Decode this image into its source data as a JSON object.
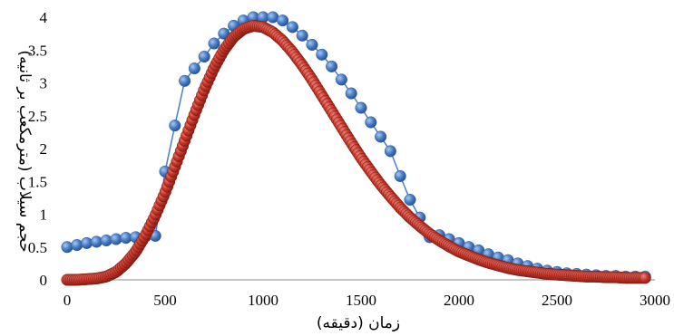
{
  "chart_data": {
    "type": "scatter",
    "title": "",
    "xlabel": "زمان (دقیقه)",
    "ylabel": "حجم سیلاب (مترمکعب بر ثانیه)",
    "xlim": [
      0,
      3000
    ],
    "ylim": [
      0,
      4
    ],
    "x_ticks": [
      "0",
      "500",
      "1000",
      "1500",
      "2000",
      "2500",
      "3000"
    ],
    "y_ticks": [
      "0",
      "0.5",
      "1",
      "1.5",
      "2",
      "2.5",
      "3",
      "3.5",
      "4"
    ],
    "grid": false,
    "legend": "none",
    "series": [
      {
        "color": "#4a7fc8",
        "style": "line-with-markers",
        "x": [
          0,
          50,
          100,
          150,
          200,
          250,
          300,
          350,
          400,
          450,
          500,
          550,
          600,
          650,
          700,
          750,
          800,
          850,
          900,
          950,
          1000,
          1050,
          1100,
          1150,
          1200,
          1250,
          1300,
          1350,
          1400,
          1450,
          1500,
          1550,
          1600,
          1650,
          1700,
          1750,
          1800,
          1850,
          1900,
          1950,
          2000,
          2050,
          2100,
          2150,
          2200,
          2250,
          2300,
          2350,
          2400,
          2450,
          2500,
          2550,
          2600,
          2650,
          2700,
          2750,
          2800,
          2850,
          2900,
          2950
        ],
        "y": [
          0.5,
          0.53,
          0.56,
          0.58,
          0.6,
          0.62,
          0.64,
          0.65,
          0.66,
          0.67,
          1.65,
          2.35,
          3.03,
          3.22,
          3.4,
          3.6,
          3.75,
          3.87,
          3.95,
          4.0,
          4.0,
          4.0,
          3.95,
          3.85,
          3.72,
          3.58,
          3.43,
          3.25,
          3.05,
          2.84,
          2.62,
          2.4,
          2.18,
          1.96,
          1.58,
          1.22,
          0.95,
          0.65,
          0.68,
          0.62,
          0.56,
          0.5,
          0.45,
          0.39,
          0.34,
          0.3,
          0.25,
          0.21,
          0.17,
          0.14,
          0.12,
          0.1,
          0.09,
          0.08,
          0.07,
          0.06,
          0.06,
          0.05,
          0.05,
          0.05
        ]
      },
      {
        "color": "#c0392b",
        "style": "dense-markers",
        "x": [
          0,
          50,
          100,
          150,
          200,
          250,
          300,
          350,
          400,
          450,
          500,
          550,
          600,
          650,
          700,
          750,
          800,
          850,
          900,
          950,
          1000,
          1050,
          1100,
          1150,
          1200,
          1250,
          1300,
          1350,
          1400,
          1450,
          1500,
          1550,
          1600,
          1650,
          1700,
          1750,
          1800,
          1850,
          1900,
          1950,
          2000,
          2050,
          2100,
          2150,
          2200,
          2250,
          2300,
          2350,
          2400,
          2450,
          2500,
          2550,
          2600,
          2650,
          2700,
          2750,
          2800,
          2850,
          2900,
          2950
        ],
        "y": [
          0.0,
          0.0,
          0.01,
          0.02,
          0.05,
          0.12,
          0.25,
          0.43,
          0.68,
          0.98,
          1.33,
          1.72,
          2.12,
          2.52,
          2.9,
          3.23,
          3.5,
          3.7,
          3.82,
          3.87,
          3.85,
          3.77,
          3.64,
          3.47,
          3.27,
          3.05,
          2.81,
          2.57,
          2.33,
          2.09,
          1.86,
          1.65,
          1.45,
          1.27,
          1.1,
          0.95,
          0.82,
          0.7,
          0.6,
          0.51,
          0.43,
          0.37,
          0.31,
          0.26,
          0.22,
          0.18,
          0.15,
          0.13,
          0.11,
          0.09,
          0.08,
          0.07,
          0.06,
          0.05,
          0.05,
          0.04,
          0.04,
          0.03,
          0.03,
          0.03
        ]
      }
    ]
  }
}
